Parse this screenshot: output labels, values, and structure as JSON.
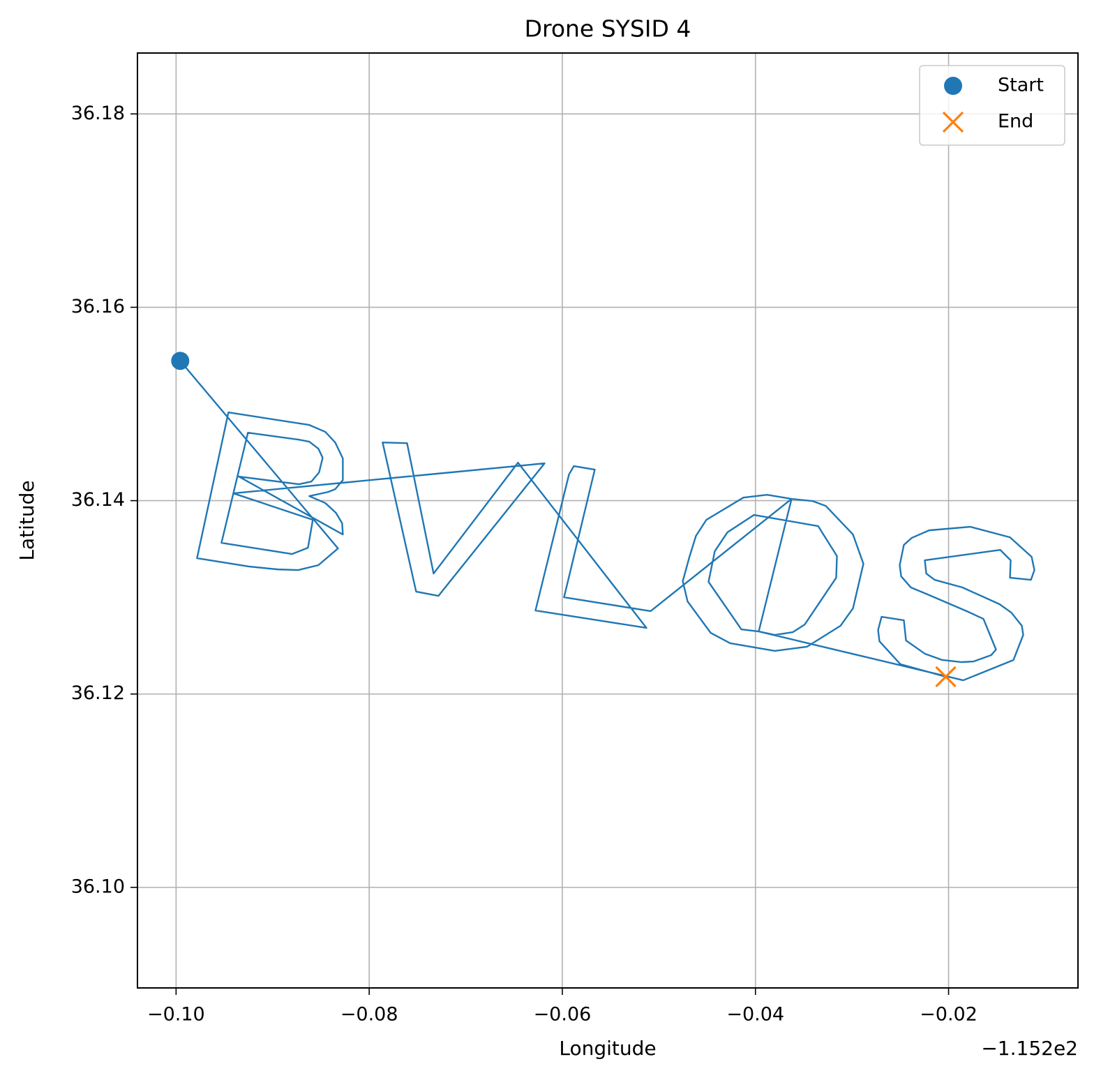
{
  "chart_data": {
    "type": "line",
    "title": "Drone SYSID 4",
    "x_label": "Longitude",
    "y_label": "Latitude",
    "x_offset_label": "−1.152e2",
    "xlim": [
      -0.104,
      -0.0066
    ],
    "ylim": [
      36.0896,
      36.1863
    ],
    "xticks": [
      {
        "value": -0.1,
        "label": "−0.10"
      },
      {
        "value": -0.08,
        "label": "−0.08"
      },
      {
        "value": -0.06,
        "label": "−0.06"
      },
      {
        "value": -0.04,
        "label": "−0.04"
      },
      {
        "value": -0.02,
        "label": "−0.02"
      }
    ],
    "yticks": [
      {
        "value": 36.1,
        "label": "36.10"
      },
      {
        "value": 36.12,
        "label": "36.12"
      },
      {
        "value": 36.14,
        "label": "36.14"
      },
      {
        "value": 36.16,
        "label": "36.16"
      },
      {
        "value": 36.18,
        "label": "36.18"
      }
    ],
    "grid": true,
    "legend_position": "upper right",
    "series": [
      {
        "color": "#1f77b4",
        "x": [
          -0.09957,
          -0.08323,
          -0.08526,
          -0.08735,
          -0.08945,
          -0.09241,
          -0.09783,
          -0.09458,
          -0.0862,
          -0.08454,
          -0.08352,
          -0.08273,
          -0.08273,
          -0.08352,
          -0.08425,
          -0.0862,
          -0.08454,
          -0.08345,
          -0.0828,
          -0.08273,
          -0.0935,
          -0.08728,
          -0.08598,
          -0.08519,
          -0.08482,
          -0.08526,
          -0.0862,
          -0.08728,
          -0.09256,
          -0.0953,
          -0.088,
          -0.08634,
          -0.08584,
          -0.09407,
          -0.06184,
          -0.07283,
          -0.07514,
          -0.07861,
          -0.07608,
          -0.07333,
          -0.06459,
          -0.05129,
          -0.06278,
          -0.05931,
          -0.05881,
          -0.05664,
          -0.05982,
          -0.05086,
          -0.03626,
          -0.03409,
          -0.03272,
          -0.0299,
          -0.02882,
          -0.0299,
          -0.0312,
          -0.03467,
          -0.038,
          -0.04262,
          -0.04464,
          -0.04703,
          -0.04753,
          -0.04681,
          -0.04616,
          -0.04508,
          -0.04125,
          -0.03879,
          -0.03626,
          -0.03966,
          -0.04146,
          -0.04486,
          -0.04421,
          -0.04291,
          -0.04016,
          -0.03351,
          -0.03156,
          -0.03164,
          -0.03489,
          -0.03612,
          -0.038,
          -0.03966,
          -0.01848,
          -0.01328,
          -0.01227,
          -0.01241,
          -0.0135,
          -0.01472,
          -0.01856,
          -0.02145,
          -0.02231,
          -0.02246,
          -0.01465,
          -0.01357,
          -0.01364,
          -0.01147,
          -0.01111,
          -0.0114,
          -0.01364,
          -0.01776,
          -0.02202,
          -0.02383,
          -0.02463,
          -0.02506,
          -0.02491,
          -0.0239,
          -0.02217,
          -0.01812,
          -0.01639,
          -0.01509,
          -0.01559,
          -0.0174,
          -0.01863,
          -0.02065,
          -0.02246,
          -0.02441,
          -0.02463,
          -0.02694,
          -0.0273,
          -0.02716,
          -0.02499,
          -0.02029
        ],
        "y": [
          36.15446,
          36.13506,
          36.13333,
          36.13282,
          36.13289,
          36.13318,
          36.13405,
          36.14913,
          36.14783,
          36.14711,
          36.14602,
          36.14436,
          36.14213,
          36.14119,
          36.1409,
          36.14047,
          36.13975,
          36.13874,
          36.13766,
          36.1365,
          36.14249,
          36.1417,
          36.14198,
          36.14292,
          36.14444,
          36.14537,
          36.1461,
          36.14631,
          36.14703,
          36.13564,
          36.13448,
          36.13513,
          36.13802,
          36.14076,
          36.14386,
          36.13015,
          36.13059,
          36.14602,
          36.14595,
          36.13246,
          36.14393,
          36.12684,
          36.12864,
          36.14271,
          36.14357,
          36.14321,
          36.13001,
          36.12857,
          36.14018,
          36.13996,
          36.13946,
          36.1365,
          36.13347,
          36.12886,
          36.12705,
          36.12489,
          36.12446,
          36.12525,
          36.12633,
          36.12958,
          36.13167,
          36.13427,
          36.13636,
          36.13802,
          36.14032,
          36.14061,
          36.14018,
          36.12647,
          36.12669,
          36.1316,
          36.13477,
          36.13672,
          36.13852,
          36.13737,
          36.13427,
          36.13203,
          36.1272,
          36.1264,
          36.12611,
          36.12647,
          36.12142,
          36.12352,
          36.12611,
          36.12705,
          36.12842,
          36.12929,
          36.13102,
          36.13181,
          36.13246,
          36.13383,
          36.13491,
          36.13383,
          36.13203,
          36.13181,
          36.13282,
          36.13419,
          36.13621,
          36.1373,
          36.13693,
          36.13614,
          36.13542,
          36.13333,
          36.13217,
          36.13102,
          36.1303,
          36.12857,
          36.12777,
          36.1246,
          36.12402,
          36.12337,
          36.1233,
          36.12352,
          36.12417,
          36.12554,
          36.12763,
          36.12799,
          36.12662,
          36.12546,
          36.12308,
          36.12179
        ]
      }
    ],
    "markers": [
      {
        "name": "Start",
        "color": "#1f77b4",
        "marker": "o",
        "x": -0.09957,
        "y": 36.15446
      },
      {
        "name": "End",
        "color": "#ff7f0e",
        "marker": "x",
        "x": -0.02029,
        "y": 36.12179
      }
    ]
  }
}
